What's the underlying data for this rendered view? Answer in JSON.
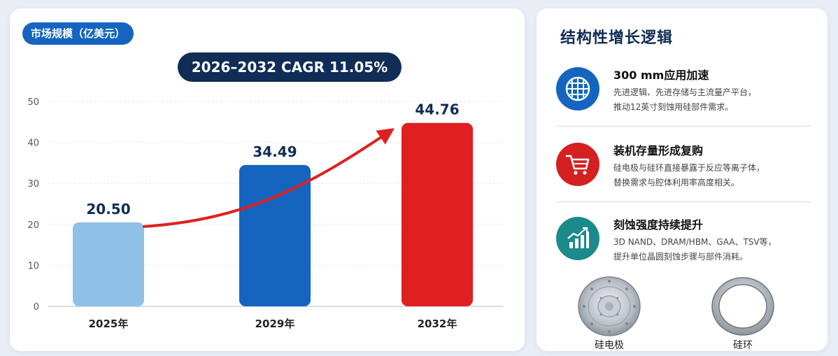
{
  "left": {
    "pill": "市场规模（亿美元）",
    "cagr": "2026–2032 CAGR 11.05%"
  },
  "chart_data": {
    "type": "bar",
    "title": "市场规模（亿美元）",
    "categories": [
      "2025年",
      "2029年",
      "2032年"
    ],
    "values": [
      20.5,
      34.49,
      44.76
    ],
    "value_labels": [
      "20.50",
      "34.49",
      "44.76"
    ],
    "ylim": [
      0,
      50
    ],
    "yticks": [
      0,
      10,
      20,
      30,
      40,
      50
    ],
    "grid": true,
    "annotation": "2026–2032 CAGR 11.05%",
    "bar_colors": [
      "#8fc1e8",
      "#1565c0",
      "#e02020"
    ],
    "arrow_color": "#e02020"
  },
  "right": {
    "title": "结构性增长逻辑",
    "items": [
      {
        "title": "300 mm应用加速",
        "desc1": "先进逻辑、先进存储与主流量产平台，",
        "desc2": "推动12英寸刻蚀用硅部件需求。",
        "icon": "wafer-grid-icon",
        "color": "#1565c0"
      },
      {
        "title": "装机存量形成复购",
        "desc1": "硅电极与硅环直接暴露于反应等离子体，",
        "desc2": "替换需求与腔体利用率高度相关。",
        "icon": "shopping-cart-icon",
        "color": "#d42020"
      },
      {
        "title": "刻蚀强度持续提升",
        "desc1": "3D NAND、DRAM/HBM、GAA、TSV等，",
        "desc2": "提升单位晶圆刻蚀步骤与部件消耗。",
        "icon": "growth-chart-icon",
        "color": "#1a8a8a"
      }
    ],
    "parts": [
      {
        "label": "硅电极",
        "icon": "silicon-electrode-icon"
      },
      {
        "label": "硅环",
        "icon": "silicon-ring-icon"
      }
    ]
  }
}
